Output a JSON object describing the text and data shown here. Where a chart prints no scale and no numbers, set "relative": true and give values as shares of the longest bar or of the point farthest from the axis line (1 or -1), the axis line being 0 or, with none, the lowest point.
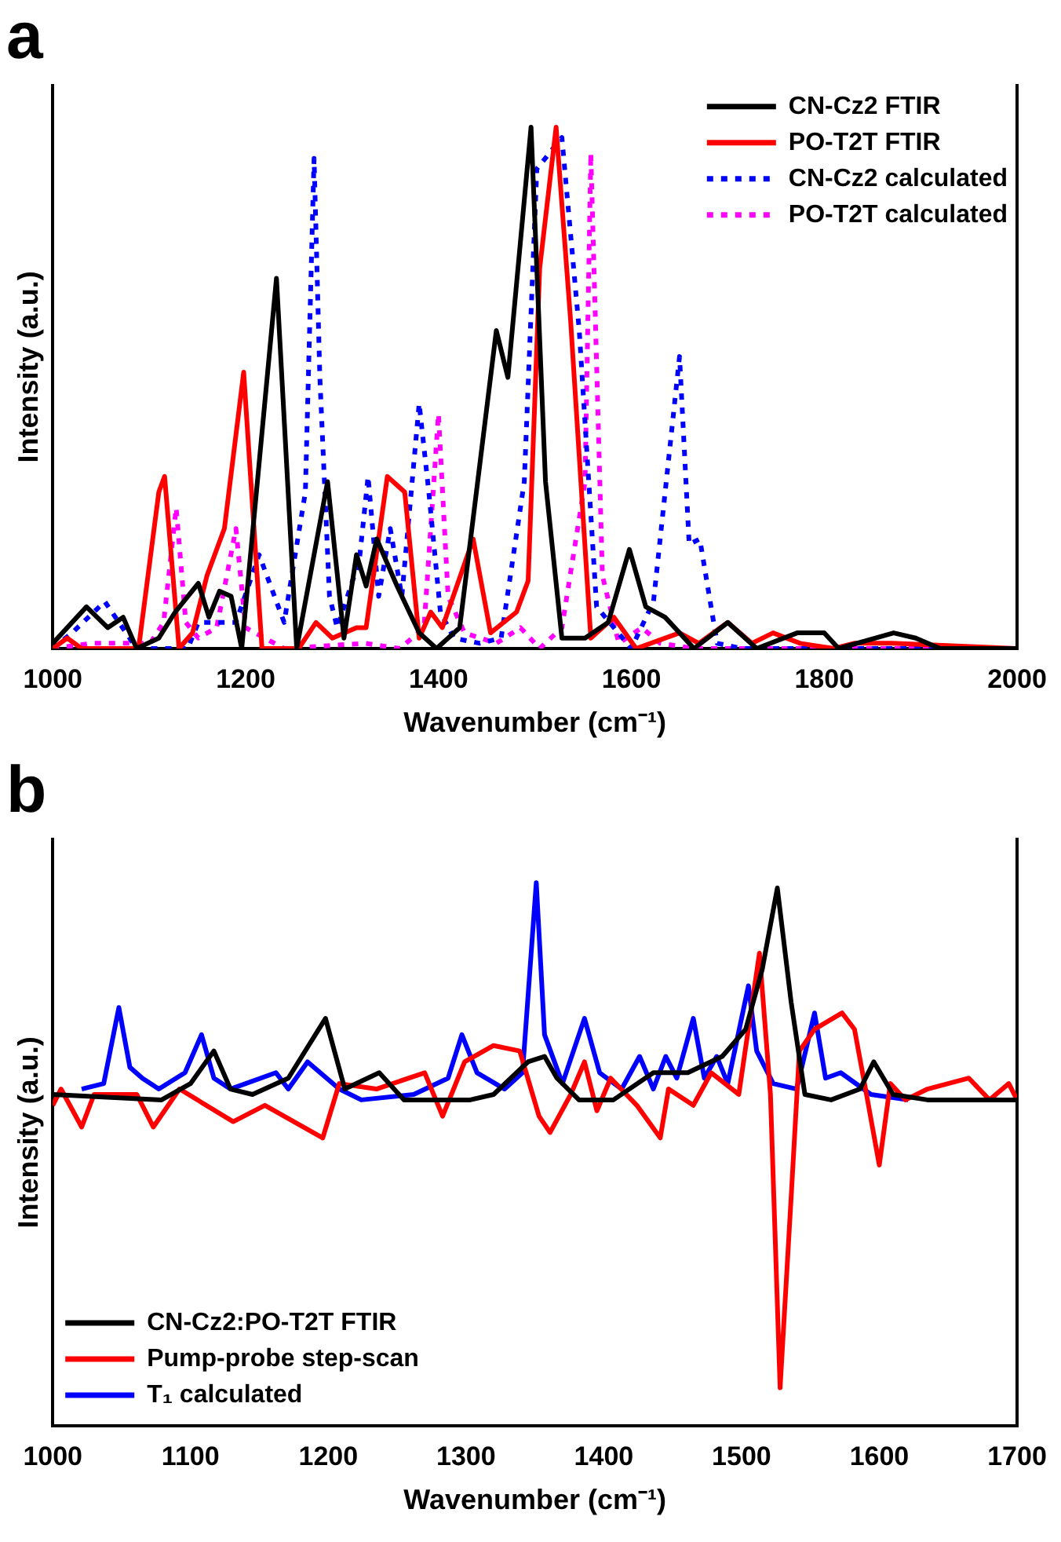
{
  "chart_data": [
    {
      "type": "line",
      "title": "a",
      "xlabel": "Wavenumber (cm⁻¹)",
      "ylabel": "Intensity (a.u.)",
      "relative": true,
      "xlim": [
        1000,
        2000
      ],
      "xticks": [
        1000,
        1200,
        1400,
        1600,
        1800,
        2000
      ],
      "legend": "top right",
      "marker": "none",
      "series": [
        {
          "name": "CN-Cz2 FTIR",
          "color": "#000000",
          "line_style": "solid",
          "x": [
            1000,
            1035,
            1057,
            1073,
            1087,
            1110,
            1127,
            1151,
            1162,
            1173,
            1185,
            1196,
            1232,
            1253,
            1285,
            1302,
            1315,
            1325,
            1336,
            1357,
            1380,
            1398,
            1422,
            1460,
            1472,
            1496,
            1511,
            1528,
            1552,
            1576,
            1598,
            1615,
            1635,
            1665,
            1700,
            1730,
            1772,
            1800,
            1815,
            1872,
            1895,
            1920,
            2000
          ],
          "values": [
            0.01,
            0.08,
            0.04,
            0.06,
            0.0,
            0.02,
            0.07,
            0.125,
            0.06,
            0.11,
            0.1,
            0.0,
            0.71,
            0.0,
            0.32,
            0.02,
            0.18,
            0.12,
            0.21,
            0.12,
            0.03,
            0.0,
            0.04,
            0.61,
            0.52,
            1.0,
            0.32,
            0.02,
            0.02,
            0.05,
            0.19,
            0.08,
            0.06,
            0.0,
            0.05,
            0.0,
            0.03,
            0.03,
            0.0,
            0.03,
            0.02,
            0.0,
            0.0
          ]
        },
        {
          "name": "PO-T2T FTIR",
          "color": "#ff0000",
          "line_style": "solid",
          "x": [
            1000,
            1015,
            1030,
            1089,
            1110,
            1116,
            1131,
            1145,
            1160,
            1178,
            1198,
            1208,
            1217,
            1255,
            1273,
            1290,
            1315,
            1325,
            1347,
            1365,
            1380,
            1392,
            1404,
            1436,
            1454,
            1481,
            1493,
            1505,
            1522,
            1537,
            1558,
            1582,
            1605,
            1650,
            1670,
            1700,
            1725,
            1747,
            1775,
            1810,
            1831,
            1870,
            2000
          ],
          "values": [
            0.0,
            0.02,
            0.0,
            0.0,
            0.3,
            0.33,
            0.0,
            0.03,
            0.14,
            0.23,
            0.53,
            0.25,
            0.0,
            0.0,
            0.05,
            0.02,
            0.04,
            0.04,
            0.33,
            0.3,
            0.02,
            0.07,
            0.04,
            0.21,
            0.03,
            0.07,
            0.13,
            0.73,
            1.0,
            0.63,
            0.02,
            0.06,
            0.0,
            0.03,
            0.01,
            0.05,
            0.01,
            0.03,
            0.01,
            0.0,
            0.01,
            0.01,
            0.0
          ]
        },
        {
          "name": "CN-Cz2 calculated",
          "color": "#0000ff",
          "line_style": "dotted",
          "x": [
            1000,
            1020,
            1054,
            1087,
            1140,
            1151,
            1190,
            1214,
            1240,
            1262,
            1271,
            1277,
            1287,
            1295,
            1318,
            1327,
            1338,
            1350,
            1362,
            1380,
            1390,
            1402,
            1416,
            1443,
            1465,
            1489,
            1502,
            1528,
            1546,
            1564,
            1600,
            1623,
            1650,
            1660,
            1671,
            1689,
            1715,
            2000
          ],
          "values": [
            0.0,
            0.03,
            0.09,
            0.0,
            0.0,
            0.05,
            0.05,
            0.18,
            0.05,
            0.3,
            0.94,
            0.52,
            0.1,
            0.04,
            0.17,
            0.33,
            0.1,
            0.23,
            0.1,
            0.47,
            0.3,
            0.07,
            0.02,
            0.01,
            0.02,
            0.32,
            0.92,
            0.98,
            0.61,
            0.08,
            0.0,
            0.09,
            0.56,
            0.2,
            0.21,
            0.01,
            0.0,
            0.0
          ]
        },
        {
          "name": "PO-T2T calculated",
          "color": "#ff00ff",
          "line_style": "dotted",
          "x": [
            1000,
            1040,
            1101,
            1115,
            1128,
            1138,
            1151,
            1170,
            1190,
            1200,
            1240,
            1324,
            1360,
            1385,
            1400,
            1410,
            1427,
            1460,
            1485,
            1505,
            1528,
            1552,
            1558,
            1570,
            1587,
            1611,
            1630,
            1665,
            2000
          ],
          "values": [
            0.0,
            0.01,
            0.01,
            0.05,
            0.27,
            0.05,
            0.02,
            0.04,
            0.23,
            0.04,
            0.0,
            0.01,
            0.0,
            0.04,
            0.45,
            0.1,
            0.03,
            0.01,
            0.04,
            0.0,
            0.04,
            0.32,
            0.95,
            0.14,
            0.01,
            0.04,
            0.01,
            0.0,
            0.0
          ]
        }
      ]
    },
    {
      "type": "line",
      "title": "b",
      "xlabel": "Wavenumber (cm⁻¹)",
      "ylabel": "Intensity (a.u.)",
      "relative": true,
      "xlim": [
        1000,
        1700
      ],
      "xticks": [
        1000,
        1100,
        1200,
        1300,
        1400,
        1500,
        1600,
        1700
      ],
      "legend": "bottom left",
      "marker": "none",
      "series": [
        {
          "name": "CN-Cz2:PO-T2T FTIR",
          "color": "#000000",
          "line_style": "solid",
          "x": [
            1000,
            1079,
            1100,
            1117,
            1129,
            1145,
            1171,
            1198,
            1212,
            1237,
            1255,
            1303,
            1320,
            1345,
            1357,
            1366,
            1382,
            1407,
            1436,
            1461,
            1486,
            1503,
            1515,
            1526,
            1536,
            1546,
            1565,
            1586,
            1596,
            1610,
            1635,
            1700
          ],
          "values": [
            0.61,
            0.6,
            0.63,
            0.69,
            0.62,
            0.61,
            0.64,
            0.75,
            0.62,
            0.65,
            0.6,
            0.6,
            0.61,
            0.67,
            0.68,
            0.64,
            0.6,
            0.6,
            0.65,
            0.65,
            0.68,
            0.73,
            0.84,
            0.99,
            0.78,
            0.61,
            0.6,
            0.62,
            0.67,
            0.61,
            0.6,
            0.6
          ]
        },
        {
          "name": "Pump-probe step-scan",
          "color": "#ff0000",
          "line_style": "solid",
          "x": [
            1000,
            1006,
            1021,
            1030,
            1061,
            1073,
            1092,
            1131,
            1154,
            1196,
            1208,
            1235,
            1270,
            1283,
            1299,
            1320,
            1339,
            1353,
            1361,
            1376,
            1386,
            1395,
            1405,
            1424,
            1441,
            1447,
            1465,
            1478,
            1498,
            1513,
            1521,
            1528,
            1536,
            1542,
            1553,
            1573,
            1582,
            1590,
            1600,
            1608,
            1619,
            1635,
            1665,
            1680,
            1694,
            1700
          ],
          "values": [
            0.59,
            0.62,
            0.55,
            0.61,
            0.61,
            0.55,
            0.62,
            0.56,
            0.59,
            0.53,
            0.63,
            0.62,
            0.65,
            0.57,
            0.67,
            0.7,
            0.69,
            0.57,
            0.54,
            0.61,
            0.67,
            0.58,
            0.64,
            0.59,
            0.53,
            0.62,
            0.59,
            0.65,
            0.61,
            0.87,
            0.61,
            0.07,
            0.42,
            0.69,
            0.73,
            0.76,
            0.73,
            0.62,
            0.48,
            0.63,
            0.6,
            0.62,
            0.64,
            0.6,
            0.63,
            0.6
          ]
        },
        {
          "name": "T₁ calculated",
          "color": "#0000ff",
          "line_style": "solid",
          "x": [
            1021,
            1037,
            1048,
            1056,
            1065,
            1077,
            1096,
            1108,
            1117,
            1129,
            1162,
            1171,
            1185,
            1208,
            1224,
            1262,
            1287,
            1297,
            1308,
            1328,
            1341,
            1351,
            1357,
            1370,
            1386,
            1397,
            1413,
            1426,
            1436,
            1445,
            1453,
            1465,
            1473,
            1482,
            1490,
            1505,
            1511,
            1523,
            1540,
            1553,
            1561,
            1572,
            1594,
            1621
          ],
          "values": [
            0.62,
            0.63,
            0.77,
            0.66,
            0.64,
            0.62,
            0.65,
            0.72,
            0.64,
            0.62,
            0.65,
            0.62,
            0.67,
            0.62,
            0.6,
            0.61,
            0.64,
            0.72,
            0.65,
            0.62,
            0.65,
            1.0,
            0.72,
            0.63,
            0.75,
            0.65,
            0.62,
            0.68,
            0.62,
            0.68,
            0.64,
            0.75,
            0.64,
            0.68,
            0.63,
            0.81,
            0.69,
            0.63,
            0.62,
            0.76,
            0.64,
            0.65,
            0.61,
            0.6
          ]
        }
      ]
    }
  ]
}
